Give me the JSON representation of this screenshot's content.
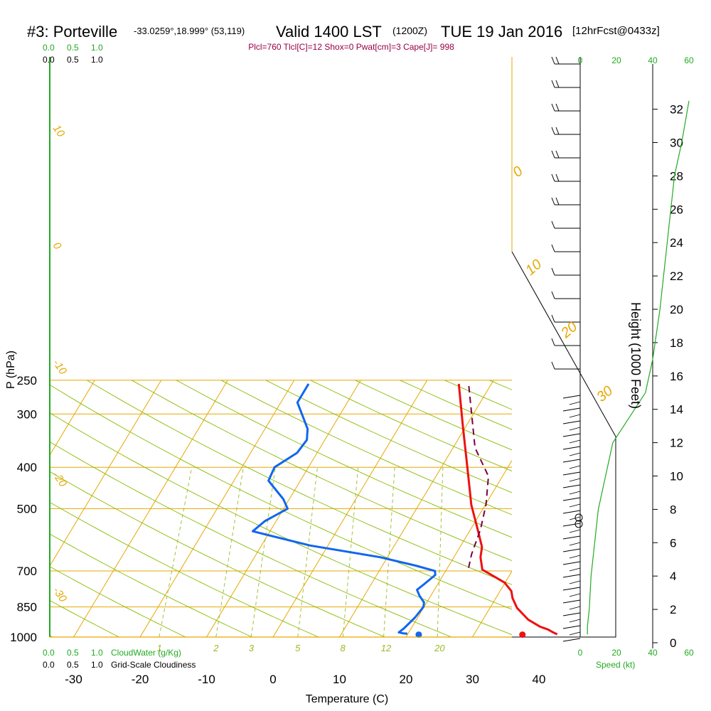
{
  "header": {
    "station": "#3: Porteville",
    "coords": "-33.0259°,18.999° (53,119)",
    "valid": "Valid 1400 LST",
    "utc": "(1200Z)",
    "date": "TUE 19 Jan 2016",
    "fcst": "[12hrFcst@0433z]"
  },
  "subtitle": "Plcl=760 Tlcl[C]=12 Shox=0 Pwat[cm]=3 Cape[J]= 998",
  "scales": {
    "cloud_ticks": [
      "0.0",
      "0.5",
      "1.0"
    ],
    "cloudwater_label": "CloudWater (g/Kg)",
    "cloudiness_label": "Grid-Scale Cloudiness",
    "speed_ticks": [
      "0",
      "20",
      "40",
      "60"
    ],
    "speed_label": "Speed (kt)"
  },
  "colors": {
    "isotherm": "#e6a800",
    "dry_adiabat": "#88bb00",
    "mixing_ratio": "#99bb22",
    "temperature": "#ee1111",
    "dewpoint": "#1166ee",
    "parcel": "#770044",
    "wind_speed": "#22aa22",
    "subtitle": "#990044"
  },
  "chart_data": {
    "type": "line",
    "title": "",
    "xlabel": "Temperature (C)",
    "ylabel": "P (hPa)",
    "y2label": "Height (1000 Feet)",
    "x_ticks": [
      -30,
      -20,
      -10,
      0,
      10,
      20,
      30,
      40
    ],
    "pressure_ticks": [
      250,
      300,
      400,
      500,
      700,
      850,
      1000
    ],
    "height_ticks": [
      0,
      2,
      4,
      6,
      8,
      10,
      12,
      14,
      16,
      18,
      20,
      22,
      24,
      26,
      28,
      30,
      32
    ],
    "dry_adiabat_labels": [
      "10",
      "0",
      "-10",
      "-20",
      "-30"
    ],
    "isotherm_labels": [
      "0",
      "10",
      "20",
      "30"
    ],
    "mixing_ratio_labels": [
      "1",
      "2",
      "3",
      "5",
      "8",
      "12",
      "20"
    ],
    "series": [
      {
        "name": "Temperature",
        "points": [
          [
            5.1,
            255
          ],
          [
            9.5,
            320
          ],
          [
            14.4,
            410
          ],
          [
            17.9,
            490
          ],
          [
            21.1,
            560
          ],
          [
            23.3,
            615
          ],
          [
            24.0,
            650
          ],
          [
            25.4,
            695
          ],
          [
            29.9,
            745
          ],
          [
            31.7,
            780
          ],
          [
            32.5,
            810
          ],
          [
            34.1,
            855
          ],
          [
            36.8,
            910
          ],
          [
            39.2,
            945
          ],
          [
            40.7,
            960
          ],
          [
            41.7,
            975
          ],
          [
            42.5,
            985
          ]
        ]
      },
      {
        "name": "Dewpoint",
        "points": [
          [
            -17.5,
            255
          ],
          [
            -17.5,
            282
          ],
          [
            -13.6,
            325
          ],
          [
            -12.7,
            345
          ],
          [
            -13.0,
            370
          ],
          [
            -15.1,
            400
          ],
          [
            -14.8,
            430
          ],
          [
            -10.9,
            475
          ],
          [
            -9.4,
            500
          ],
          [
            -11.7,
            535
          ],
          [
            -12.6,
            565
          ],
          [
            -2.7,
            610
          ],
          [
            8.9,
            650
          ],
          [
            15.0,
            680
          ],
          [
            18.4,
            700
          ],
          [
            18.8,
            715
          ],
          [
            18.0,
            750
          ],
          [
            17.4,
            775
          ],
          [
            18.3,
            800
          ],
          [
            19.6,
            830
          ],
          [
            19.9,
            850
          ],
          [
            19.6,
            900
          ],
          [
            18.9,
            955
          ],
          [
            18.5,
            975
          ],
          [
            19.2,
            980
          ],
          [
            19.9,
            982
          ]
        ]
      },
      {
        "name": "Parcel",
        "points": [
          [
            6.8,
            258
          ],
          [
            13.3,
            360
          ],
          [
            17.9,
            420
          ],
          [
            20.1,
            490
          ],
          [
            21.5,
            560
          ],
          [
            22.4,
            640
          ],
          [
            23.2,
            690
          ]
        ]
      }
    ],
    "surface_points": {
      "temperature": 37.3,
      "dewpoint": 21.7,
      "pressure": 987
    },
    "wind_speed_kt": [
      [
        60,
        32.5
      ],
      [
        56,
        30
      ],
      [
        52,
        28
      ],
      [
        50,
        26
      ],
      [
        48,
        24
      ],
      [
        46,
        22
      ],
      [
        44,
        20
      ],
      [
        40,
        17
      ],
      [
        36,
        15
      ],
      [
        30,
        14
      ],
      [
        24,
        13
      ],
      [
        18,
        12
      ],
      [
        14,
        10
      ],
      [
        10,
        8
      ],
      [
        8,
        6
      ],
      [
        6,
        4
      ],
      [
        5,
        2
      ],
      [
        4,
        1
      ],
      [
        4,
        0.5
      ]
    ]
  }
}
